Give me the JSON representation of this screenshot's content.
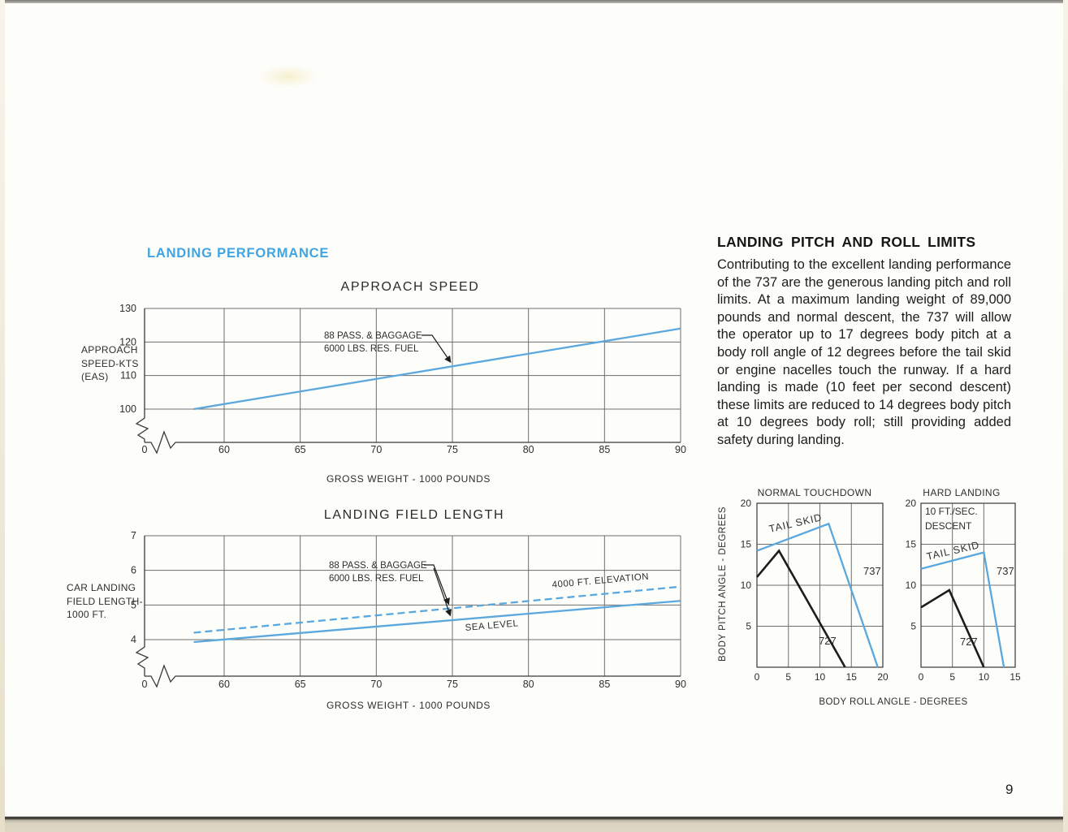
{
  "page": {
    "number": "9",
    "section_title": "LANDING PERFORMANCE"
  },
  "article": {
    "title": "LANDING PITCH AND ROLL LIMITS",
    "body": "Contributing to the excellent landing performance of the 737 are the generous landing pitch and roll limits. At a maximum landing weight of 89,000 pounds and normal descent, the 737 will allow the operator up to 17 degrees body pitch at a body roll angle of 12 degrees before the tail skid or engine nacelles touch the runway. If a hard landing is made (10 feet per second descent) these limits are reduced to 14 degrees body pitch at 10 degrees body roll; still providing added safety during landing."
  },
  "colors": {
    "accent_blue": "#41a4e3",
    "line_blue": "#5aa8dd",
    "line_black": "#1c1c1c"
  },
  "chart_data": [
    {
      "id": "approach_speed",
      "type": "line",
      "title": "APPROACH SPEED",
      "xlabel": "GROSS WEIGHT - 1000 POUNDS",
      "ylabel": "APPROACH SPEED-KTS (EAS)",
      "ylabel_display": "APPROACH\nSPEED-KTS\n(EAS)",
      "xlim": [
        55,
        90
      ],
      "ylim": [
        100,
        130
      ],
      "x_ticks": [
        0,
        60,
        65,
        70,
        75,
        80,
        85,
        90
      ],
      "y_ticks": [
        100,
        110,
        120,
        130
      ],
      "axis_break": true,
      "grid": true,
      "legend_position": "none",
      "series": [
        {
          "name": "approach_speed_line",
          "color": "#5aa8dd",
          "style": "solid",
          "points": [
            [
              58,
              100
            ],
            [
              90,
              124
            ]
          ]
        }
      ],
      "annotation": {
        "lines": [
          "88 PASS. & BAGGAGE",
          "6000 LBS. RES. FUEL"
        ],
        "arrow_target": [
          75,
          113.5
        ]
      }
    },
    {
      "id": "landing_field_length",
      "type": "line",
      "title": "LANDING FIELD LENGTH",
      "xlabel": "GROSS WEIGHT - 1000 POUNDS",
      "ylabel": "CAR LANDING FIELD LENGTH- 1000 FT.",
      "ylabel_display": "CAR LANDING\nFIELD LENGTH-\n1000 FT.",
      "xlim": [
        55,
        90
      ],
      "ylim": [
        4,
        7
      ],
      "x_ticks": [
        0,
        60,
        65,
        70,
        75,
        80,
        85,
        90
      ],
      "y_ticks": [
        4,
        5,
        6,
        7
      ],
      "axis_break": true,
      "grid": true,
      "legend_position": "none",
      "series": [
        {
          "name": "4000_ft_elevation",
          "label": "4000 FT. ELEVATION",
          "color": "#5aa8dd",
          "style": "dashed",
          "points": [
            [
              58,
              4.2
            ],
            [
              90,
              5.53
            ]
          ]
        },
        {
          "name": "sea_level",
          "label": "SEA LEVEL",
          "color": "#5aa8dd",
          "style": "solid",
          "points": [
            [
              58,
              3.93
            ],
            [
              90,
              5.12
            ]
          ]
        }
      ],
      "annotation": {
        "lines": [
          "88 PASS. & BAGGAGE",
          "6000 LBS. RES. FUEL"
        ],
        "arrow_targets": [
          [
            75,
            4.72
          ],
          [
            75,
            4.55
          ]
        ]
      }
    },
    {
      "id": "normal_touchdown",
      "type": "line",
      "title": "NORMAL TOUCHDOWN",
      "xlabel": "BODY ROLL ANGLE - DEGREES",
      "ylabel": "BODY PITCH ANGLE - DEGREES",
      "xlim": [
        0,
        20
      ],
      "ylim": [
        0,
        20
      ],
      "x_ticks": [
        0,
        5,
        10,
        15,
        20
      ],
      "y_ticks": [
        5,
        10,
        15,
        20
      ],
      "grid": true,
      "legend_position": "inline",
      "series": [
        {
          "name": "737",
          "label": "737",
          "color": "#5aa8dd",
          "style": "solid",
          "points": [
            [
              0,
              14.2
            ],
            [
              11.4,
              17.5
            ],
            [
              19.2,
              0
            ]
          ]
        },
        {
          "name": "727",
          "label": "727",
          "color": "#1c1c1c",
          "style": "solid",
          "points": [
            [
              0,
              11
            ],
            [
              3.5,
              14.2
            ],
            [
              14,
              0
            ]
          ]
        }
      ],
      "labels": {
        "tail_skid": "TAIL SKID"
      }
    },
    {
      "id": "hard_landing",
      "type": "line",
      "title": "HARD LANDING",
      "xlabel": "BODY ROLL ANGLE - DEGREES",
      "ylabel": "BODY PITCH ANGLE - DEGREES",
      "xlim": [
        0,
        15
      ],
      "ylim": [
        0,
        20
      ],
      "x_ticks": [
        0,
        5,
        10,
        15
      ],
      "y_ticks": [
        5,
        10,
        15,
        20
      ],
      "grid": true,
      "legend_position": "inline",
      "series": [
        {
          "name": "737",
          "label": "737",
          "color": "#5aa8dd",
          "style": "solid",
          "points": [
            [
              0,
              12
            ],
            [
              10,
              14
            ],
            [
              13.2,
              0
            ]
          ]
        },
        {
          "name": "727",
          "label": "727",
          "color": "#1c1c1c",
          "style": "solid",
          "points": [
            [
              0,
              7.3
            ],
            [
              4.5,
              9.4
            ],
            [
              10,
              0
            ]
          ]
        }
      ],
      "labels": {
        "tail_skid": "TAIL SKID",
        "note": "10 FT./SEC.\nDESCENT"
      }
    }
  ]
}
